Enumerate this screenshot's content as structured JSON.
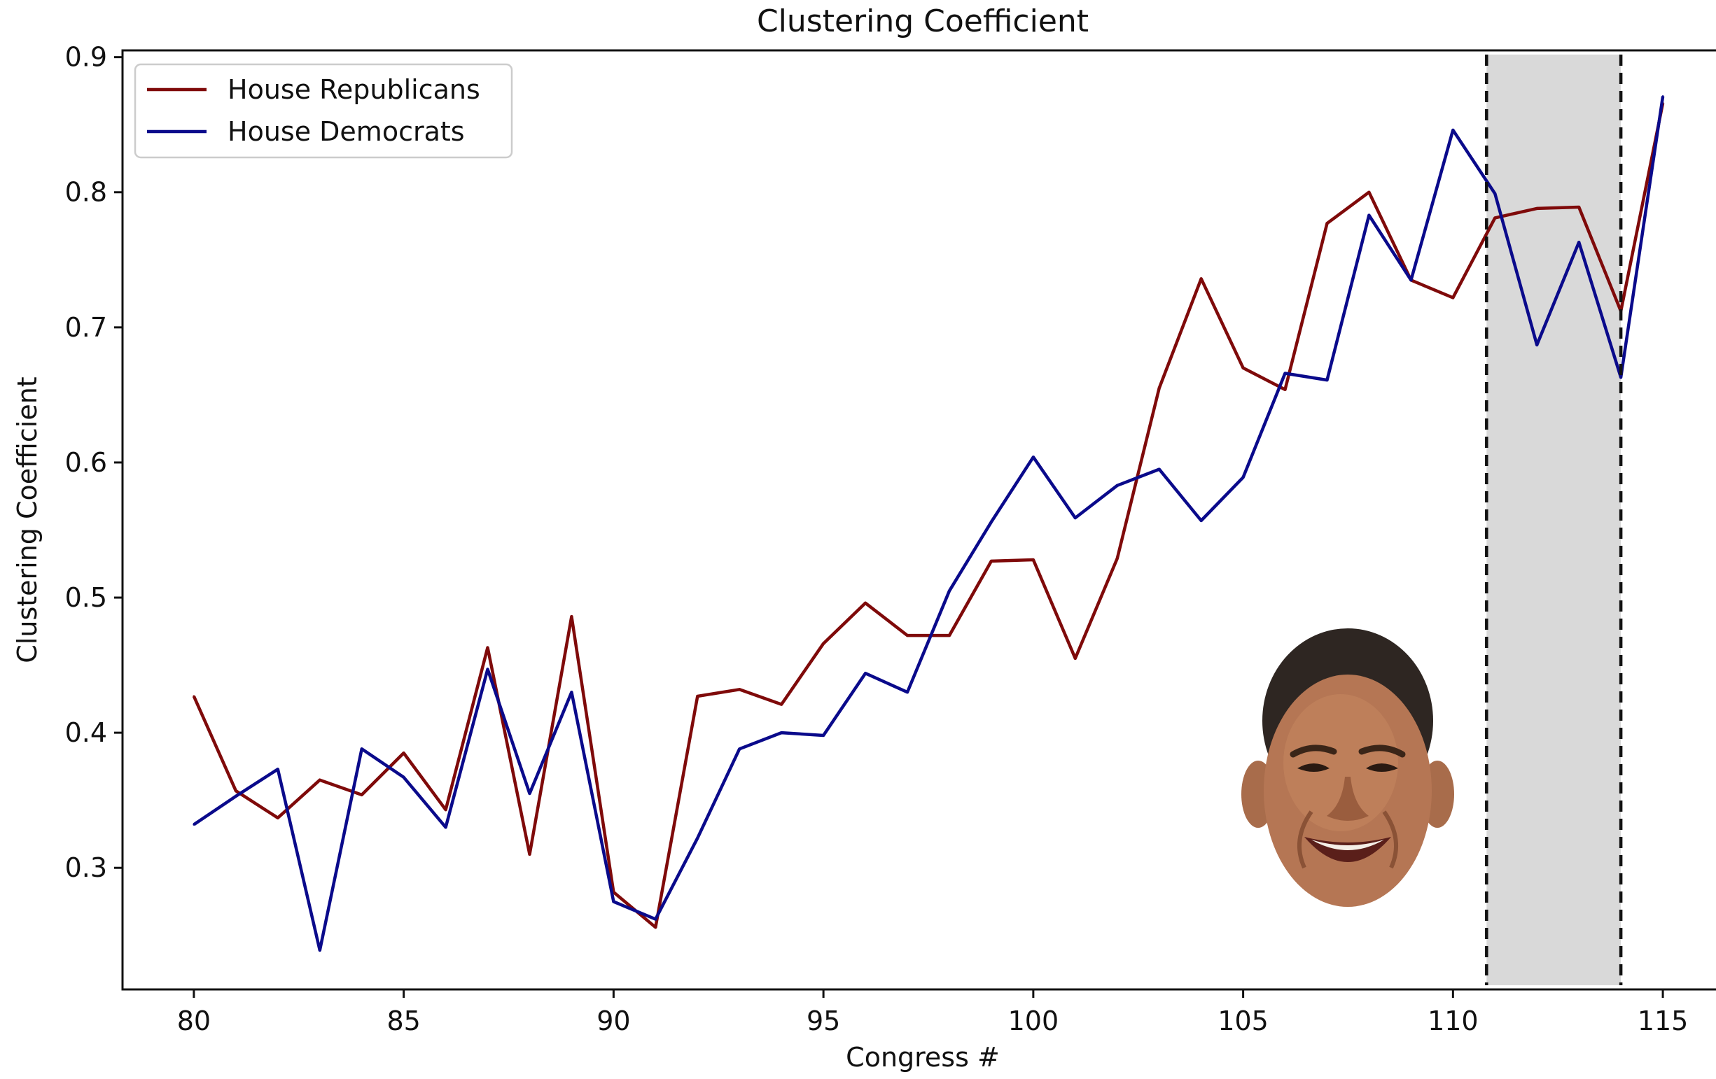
{
  "chart_data": {
    "type": "line",
    "title": "Clustering Coefficient",
    "xlabel": "Congress #",
    "ylabel": "Clustering Coefficient",
    "xlim": [
      78.3,
      116.5
    ],
    "ylim": [
      0.21,
      0.905
    ],
    "x_ticks": [
      80,
      85,
      90,
      95,
      100,
      105,
      110,
      115
    ],
    "y_ticks": [
      0.3,
      0.4,
      0.5,
      0.6,
      0.7,
      0.8,
      0.9
    ],
    "x_tick_labels": [
      "80",
      "85",
      "90",
      "95",
      "100",
      "105",
      "110",
      "115"
    ],
    "y_tick_labels": [
      "0.3",
      "0.4",
      "0.5",
      "0.6",
      "0.7",
      "0.8",
      "0.9"
    ],
    "grid": false,
    "legend_position": "top-left",
    "x": [
      80,
      81,
      82,
      83,
      84,
      85,
      86,
      87,
      88,
      89,
      90,
      91,
      92,
      93,
      94,
      95,
      96,
      97,
      98,
      99,
      100,
      101,
      102,
      103,
      104,
      105,
      106,
      107,
      108,
      109,
      110,
      111,
      112,
      113,
      114,
      115
    ],
    "series": [
      {
        "name": "House Republicans",
        "color": "#7f0a0a",
        "values": [
          0.427,
          0.357,
          0.337,
          0.365,
          0.354,
          0.385,
          0.343,
          0.463,
          0.31,
          0.486,
          0.282,
          0.256,
          0.427,
          0.432,
          0.421,
          0.466,
          0.496,
          0.472,
          0.472,
          0.527,
          0.528,
          0.455,
          0.529,
          0.655,
          0.736,
          0.67,
          0.654,
          0.777,
          0.8,
          0.735,
          0.722,
          0.781,
          0.788,
          0.789,
          0.712,
          0.866
        ]
      },
      {
        "name": "House Democrats",
        "color": "#0a0a8b",
        "values": [
          0.332,
          0.353,
          0.373,
          0.239,
          0.388,
          0.367,
          0.33,
          0.447,
          0.355,
          0.43,
          0.275,
          0.262,
          0.322,
          0.388,
          0.4,
          0.398,
          0.444,
          0.43,
          0.505,
          0.556,
          0.604,
          0.559,
          0.583,
          0.595,
          0.557,
          0.589,
          0.666,
          0.661,
          0.783,
          0.735,
          0.846,
          0.799,
          0.687,
          0.763,
          0.663,
          0.871
        ]
      }
    ],
    "shaded_region": {
      "x_start": 110.8,
      "x_end": 114.0,
      "color": "#d9d9d9",
      "border": "black dashed vertical lines"
    }
  }
}
